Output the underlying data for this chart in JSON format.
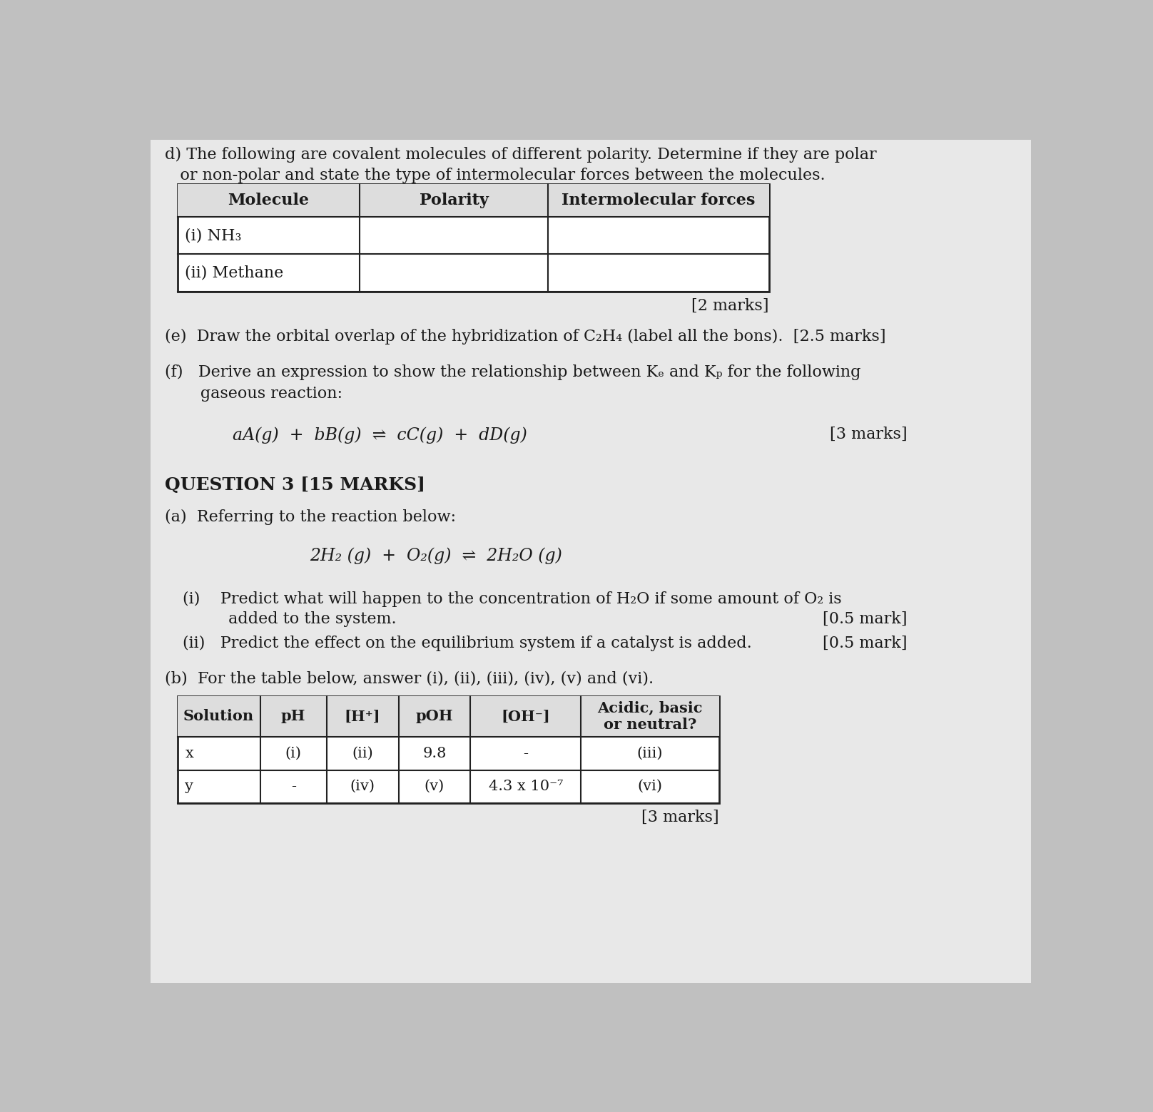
{
  "bg_color": "#c0c0c0",
  "page_bg": "#e8e8e8",
  "text_color": "#1a1a1a",
  "intro_line1": "d) The following are covalent molecules of different polarity. Determine if they are polar",
  "intro_line2": "   or non-polar and state the type of intermolecular forces between the molecules.",
  "table1_headers": [
    "Molecule",
    "Polarity",
    "Intermolecular forces"
  ],
  "table1_rows": [
    [
      "(i) NH₃",
      "",
      ""
    ],
    [
      "(ii) Methane",
      "",
      ""
    ]
  ],
  "marks1": "[2 marks]",
  "e_line": "(e)  Draw the orbital overlap of the hybridization of C₂H₄ (label all the bon⁠s).  [2.5 marks]",
  "f_line1": "(f)   Derive an expression to show the relationship between Kₑ and Kₚ for the following",
  "f_line2": "       gaseous reaction:",
  "f_equation": "aA(g)  +  bB(g)  ⇌  cC(g)  +  dD(g)",
  "f_marks": "[3 marks]",
  "q3_header": "QUESTION 3 [15 MARKS]",
  "q3a_intro": "(a)  Referring to the reaction below:",
  "q3a_equation": "2H₂ (g)  +  O₂(g)  ⇌  2H₂O (g)",
  "q3a_i_line1": "(i)    Predict what will happen to the concentration of H₂O if some amount of O₂ is",
  "q3a_i_line2": "         added to the system.",
  "q3a_i_marks": "[0.5 mark]",
  "q3a_ii_line": "(ii)   Predict the effect on the equilibrium system if a catalyst is added.",
  "q3a_ii_marks": "[0.5 mark]",
  "q3b_line": "(b)  For the table below, answer (i), (ii), (iii), (iv), (v) and (vi).",
  "table2_headers": [
    "Solution",
    "pH",
    "[H⁺]",
    "pOH",
    "[OH⁻]",
    "Acidic, basic\nor neutral?"
  ],
  "table2_rows": [
    [
      "x",
      "(i)",
      "(ii)",
      "9.8",
      "-",
      "(iii)"
    ],
    [
      "y",
      "-",
      "(iv)",
      "(v)",
      "4.3 x 10⁻⁷",
      "(vi)"
    ]
  ],
  "marks2": "[3 marks]",
  "fs_body": 16,
  "fs_table": 15,
  "fs_eq": 17,
  "fs_q3header": 18
}
